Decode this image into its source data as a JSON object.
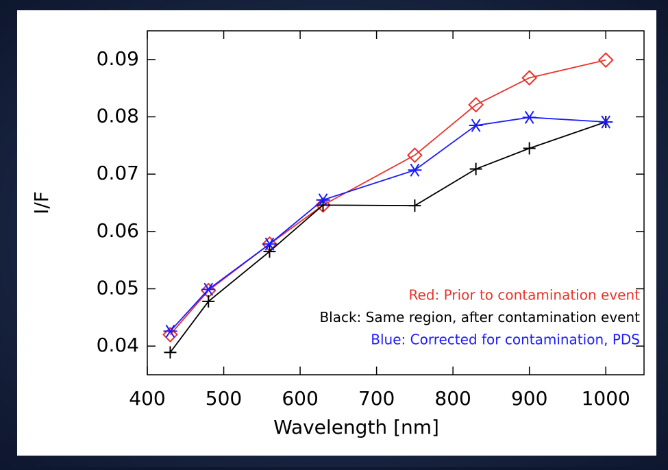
{
  "chart_data": {
    "type": "line",
    "xlabel": "Wavelength [nm]",
    "ylabel": "I/F",
    "x": [
      430,
      480,
      560,
      630,
      750,
      830,
      900,
      1000
    ],
    "series": [
      {
        "name": "Red: Prior to contamination event",
        "color": "#e8322a",
        "marker": "diamond",
        "values": [
          0.042,
          0.0497,
          0.0578,
          0.0646,
          0.0733,
          0.0821,
          0.0868,
          0.0899
        ]
      },
      {
        "name": "Black: Same region, after contamination event",
        "color": "#000000",
        "marker": "plus",
        "values": [
          0.0389,
          0.0478,
          0.0565,
          0.0646,
          0.0645,
          0.0709,
          0.0745,
          0.0791
        ]
      },
      {
        "name": "Blue: Corrected for contamination, PDS",
        "color": "#1a1aff",
        "marker": "asterisk",
        "values": [
          0.0426,
          0.0499,
          0.0578,
          0.0655,
          0.0707,
          0.0785,
          0.0799,
          0.0791
        ]
      }
    ],
    "xlim": [
      400,
      1050
    ],
    "ylim": [
      0.035,
      0.095
    ],
    "xticks": [
      400,
      500,
      600,
      700,
      800,
      900,
      1000
    ],
    "yticks": [
      0.04,
      0.05,
      0.06,
      0.07,
      0.08,
      0.09
    ],
    "legend": "lower right"
  }
}
